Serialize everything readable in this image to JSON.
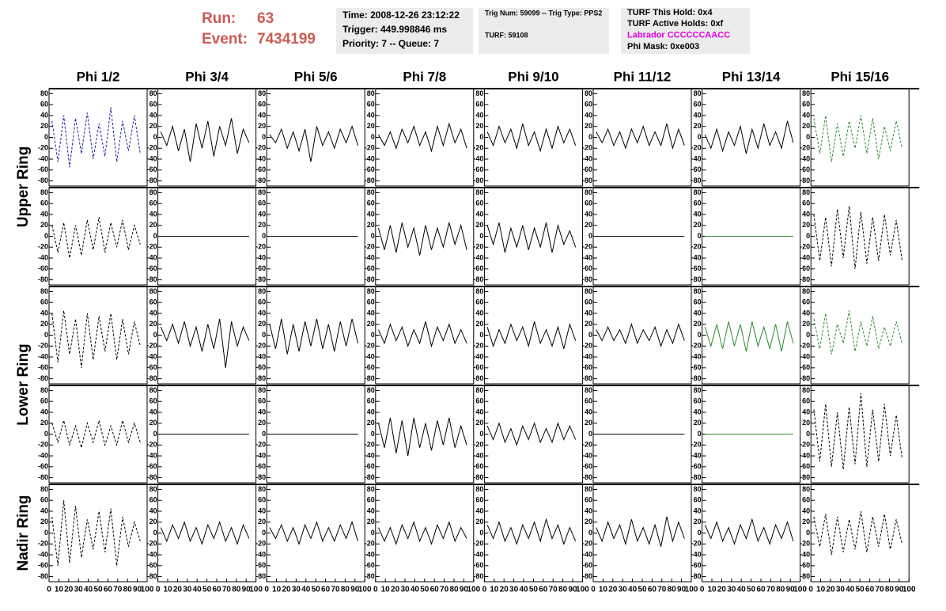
{
  "header": {
    "run_label": "Run:",
    "run": "63",
    "event_label": "Event:",
    "event": "7434199"
  },
  "info_boxes": [
    {
      "lines": [
        {
          "text": "Time: 2008-12-26 23:12:22"
        },
        {
          "text": "Trigger: 449.998846 ms"
        },
        {
          "text": "Priority: 7 -- Queue: 7"
        }
      ]
    },
    {
      "lines": [
        {
          "text": "Trig Num: 59099 -- Trig Type: PPS2"
        },
        {
          "text": "TURF: 59108"
        }
      ]
    },
    {
      "lines": [
        {
          "text": "TURF This Hold: 0x4"
        },
        {
          "text": "TURF Active Holds: 0xf"
        },
        {
          "text": "Labrador CCCCCCAACC",
          "color": "#e000e0"
        },
        {
          "text": "Phi Mask: 0xe003"
        }
      ]
    }
  ],
  "chart_data": {
    "type": "waveform-grid",
    "columns": [
      "Phi 1/2",
      "Phi 3/4",
      "Phi 5/6",
      "Phi 7/8",
      "Phi 9/10",
      "Phi 11/12",
      "Phi 13/14",
      "Phi 15/16"
    ],
    "row_labels": [
      "Upper Ring",
      "Lower Ring",
      "Nadir Ring"
    ],
    "x": [
      3,
      9,
      15,
      21,
      27,
      33,
      39,
      45,
      51,
      57,
      63,
      69,
      75,
      81,
      87,
      93
    ],
    "xlim": [
      0,
      100
    ],
    "xticks": [
      0,
      10,
      20,
      30,
      40,
      50,
      60,
      70,
      80,
      90,
      100
    ],
    "ylim": [
      -85,
      85
    ],
    "yticks": [
      -80,
      -60,
      -40,
      -20,
      0,
      20,
      40,
      60,
      80
    ],
    "grid": false,
    "panels": [
      [
        {
          "color": "#1a1aa0",
          "dashed": true,
          "values": [
            30,
            -45,
            40,
            -55,
            35,
            -30,
            45,
            -40,
            25,
            -35,
            55,
            -45,
            30,
            -25,
            40,
            -30
          ]
        },
        {
          "color": "#000000",
          "dashed": false,
          "values": [
            10,
            -15,
            20,
            -25,
            15,
            -45,
            25,
            -20,
            30,
            -35,
            20,
            -15,
            35,
            -30,
            15,
            -10
          ]
        },
        {
          "color": "#000000",
          "dashed": false,
          "values": [
            5,
            -10,
            15,
            -20,
            10,
            -25,
            15,
            -45,
            20,
            -15,
            10,
            -20,
            15,
            -10,
            20,
            -15
          ]
        },
        {
          "color": "#000000",
          "dashed": false,
          "values": [
            5,
            -15,
            10,
            -20,
            15,
            -10,
            20,
            -15,
            10,
            -25,
            20,
            -15,
            25,
            -10,
            15,
            -20
          ]
        },
        {
          "color": "#000000",
          "dashed": false,
          "values": [
            10,
            -15,
            20,
            -10,
            15,
            -20,
            25,
            -15,
            10,
            -25,
            15,
            -20,
            20,
            -10,
            15,
            -15
          ]
        },
        {
          "color": "#000000",
          "dashed": false,
          "values": [
            10,
            -10,
            15,
            -15,
            10,
            -20,
            15,
            -10,
            20,
            -15,
            10,
            -15,
            25,
            -20,
            15,
            -15
          ]
        },
        {
          "color": "#000000",
          "dashed": false,
          "values": [
            5,
            -20,
            15,
            -25,
            10,
            -15,
            20,
            -30,
            15,
            -20,
            25,
            -15,
            10,
            -20,
            30,
            -10
          ]
        },
        {
          "color": "#2a8a2a",
          "dashed": true,
          "values": [
            35,
            -30,
            40,
            -45,
            25,
            -35,
            30,
            -20,
            40,
            -30,
            35,
            -40,
            20,
            -25,
            30,
            -20
          ]
        }
      ],
      [
        {
          "color": "#000000",
          "dashed": true,
          "values": [
            20,
            -30,
            25,
            -40,
            20,
            -35,
            30,
            -25,
            35,
            -30,
            25,
            -20,
            30,
            -25,
            20,
            -15
          ]
        },
        {
          "color": "#000000",
          "dashed": false,
          "values": [
            0,
            0,
            0,
            0,
            0,
            0,
            0,
            0,
            0,
            0,
            0,
            0,
            0,
            0,
            0,
            0
          ]
        },
        {
          "color": "#000000",
          "dashed": false,
          "values": [
            0,
            0,
            0,
            0,
            0,
            0,
            0,
            0,
            0,
            0,
            0,
            0,
            0,
            0,
            0,
            0
          ]
        },
        {
          "color": "#000000",
          "dashed": false,
          "values": [
            15,
            -25,
            20,
            -30,
            25,
            -20,
            15,
            -35,
            20,
            -25,
            15,
            -20,
            25,
            -15,
            20,
            -25
          ]
        },
        {
          "color": "#000000",
          "dashed": false,
          "values": [
            20,
            -15,
            25,
            -30,
            15,
            -20,
            20,
            -25,
            15,
            -20,
            25,
            -30,
            20,
            -15,
            10,
            -20
          ]
        },
        {
          "color": "#000000",
          "dashed": false,
          "values": [
            0,
            0,
            0,
            0,
            0,
            0,
            0,
            0,
            0,
            0,
            0,
            0,
            0,
            0,
            0,
            0
          ]
        },
        {
          "color": "#2a8a2a",
          "dashed": false,
          "values": [
            0,
            0,
            0,
            0,
            0,
            0,
            0,
            0,
            0,
            0,
            0,
            0,
            0,
            0,
            0,
            0
          ]
        },
        {
          "color": "#000000",
          "dashed": true,
          "values": [
            40,
            -45,
            35,
            -55,
            50,
            -40,
            55,
            -60,
            45,
            -50,
            35,
            -45,
            40,
            -35,
            30,
            -45
          ]
        }
      ],
      [
        {
          "color": "#000000",
          "dashed": true,
          "values": [
            40,
            -50,
            45,
            -35,
            30,
            -60,
            40,
            -45,
            35,
            -30,
            40,
            -45,
            30,
            -35,
            25,
            -20
          ]
        },
        {
          "color": "#000000",
          "dashed": false,
          "values": [
            15,
            -10,
            20,
            -15,
            25,
            -20,
            15,
            -30,
            20,
            -25,
            30,
            -60,
            25,
            -20,
            15,
            -10
          ]
        },
        {
          "color": "#000000",
          "dashed": false,
          "values": [
            20,
            -25,
            30,
            -35,
            20,
            -30,
            25,
            -20,
            30,
            -25,
            20,
            -30,
            25,
            -20,
            30,
            -15
          ]
        },
        {
          "color": "#000000",
          "dashed": false,
          "values": [
            10,
            -15,
            20,
            -10,
            15,
            -20,
            10,
            -15,
            25,
            -20,
            15,
            -10,
            20,
            -15,
            10,
            -15
          ]
        },
        {
          "color": "#000000",
          "dashed": false,
          "values": [
            15,
            -20,
            10,
            -15,
            20,
            -10,
            15,
            -20,
            25,
            -15,
            10,
            -20,
            15,
            -25,
            20,
            -10
          ]
        },
        {
          "color": "#000000",
          "dashed": false,
          "values": [
            10,
            -10,
            15,
            -10,
            10,
            -15,
            20,
            -15,
            10,
            -10,
            15,
            -20,
            10,
            -15,
            20,
            -10
          ]
        },
        {
          "color": "#2a8a2a",
          "dashed": false,
          "values": [
            15,
            -20,
            20,
            -25,
            25,
            -20,
            20,
            -30,
            25,
            -20,
            15,
            -25,
            20,
            -30,
            25,
            -15
          ]
        },
        {
          "color": "#2a8a2a",
          "dashed": true,
          "values": [
            30,
            -25,
            40,
            -35,
            20,
            -15,
            45,
            -30,
            25,
            -20,
            35,
            -25,
            15,
            -20,
            25,
            -15
          ]
        }
      ],
      [
        {
          "color": "#000000",
          "dashed": true,
          "values": [
            20,
            -15,
            25,
            -20,
            15,
            -25,
            20,
            -15,
            25,
            -20,
            15,
            -20,
            25,
            -15,
            20,
            -15
          ]
        },
        {
          "color": "#000000",
          "dashed": false,
          "values": [
            0,
            0,
            0,
            0,
            0,
            0,
            0,
            0,
            0,
            0,
            0,
            0,
            0,
            0,
            0,
            0
          ]
        },
        {
          "color": "#000000",
          "dashed": false,
          "values": [
            0,
            0,
            0,
            0,
            0,
            0,
            0,
            0,
            0,
            0,
            0,
            0,
            0,
            0,
            0,
            0
          ]
        },
        {
          "color": "#000000",
          "dashed": false,
          "values": [
            20,
            -25,
            30,
            -35,
            25,
            -40,
            30,
            -25,
            20,
            -30,
            25,
            -20,
            30,
            -25,
            15,
            -20
          ]
        },
        {
          "color": "#000000",
          "dashed": false,
          "values": [
            15,
            -10,
            20,
            -15,
            10,
            -20,
            15,
            -10,
            20,
            -15,
            10,
            -15,
            20,
            -10,
            15,
            -10
          ]
        },
        {
          "color": "#000000",
          "dashed": false,
          "values": [
            0,
            0,
            0,
            0,
            0,
            0,
            0,
            0,
            0,
            0,
            0,
            0,
            0,
            0,
            0,
            0
          ]
        },
        {
          "color": "#2a8a2a",
          "dashed": false,
          "values": [
            0,
            0,
            0,
            0,
            0,
            0,
            0,
            0,
            0,
            0,
            0,
            0,
            0,
            0,
            0,
            0
          ]
        },
        {
          "color": "#000000",
          "dashed": true,
          "values": [
            45,
            -50,
            55,
            -60,
            40,
            -65,
            50,
            -55,
            75,
            -60,
            45,
            -50,
            55,
            -40,
            35,
            -45
          ]
        }
      ],
      [
        {
          "color": "#000000",
          "dashed": true,
          "values": [
            30,
            -60,
            60,
            -55,
            50,
            -45,
            25,
            -30,
            40,
            -35,
            45,
            -60,
            30,
            -25,
            20,
            -15
          ]
        },
        {
          "color": "#000000",
          "dashed": false,
          "values": [
            10,
            -15,
            15,
            -10,
            20,
            -15,
            10,
            -20,
            15,
            -10,
            20,
            -15,
            10,
            -20,
            15,
            -10
          ]
        },
        {
          "color": "#000000",
          "dashed": false,
          "values": [
            10,
            -10,
            15,
            -15,
            10,
            -20,
            15,
            -10,
            20,
            -15,
            10,
            -15,
            15,
            -10,
            20,
            -15
          ]
        },
        {
          "color": "#000000",
          "dashed": false,
          "values": [
            10,
            -15,
            10,
            -20,
            15,
            -10,
            20,
            -15,
            10,
            -20,
            15,
            -10,
            20,
            -15,
            10,
            -10
          ]
        },
        {
          "color": "#000000",
          "dashed": false,
          "values": [
            15,
            -10,
            20,
            -15,
            10,
            -20,
            15,
            -10,
            20,
            -15,
            25,
            -10,
            15,
            -20,
            10,
            -15
          ]
        },
        {
          "color": "#000000",
          "dashed": false,
          "values": [
            10,
            -15,
            20,
            -10,
            15,
            -20,
            25,
            -15,
            10,
            -20,
            15,
            -25,
            30,
            -15,
            20,
            -10
          ]
        },
        {
          "color": "#000000",
          "dashed": false,
          "values": [
            15,
            -10,
            20,
            -15,
            10,
            -20,
            15,
            -10,
            25,
            -15,
            10,
            -20,
            15,
            -10,
            20,
            -15
          ]
        },
        {
          "color": "#000000",
          "dashed": true,
          "values": [
            30,
            -25,
            35,
            -40,
            30,
            -35,
            25,
            -30,
            40,
            -35,
            30,
            -25,
            35,
            -30,
            25,
            -20
          ]
        }
      ]
    ]
  }
}
